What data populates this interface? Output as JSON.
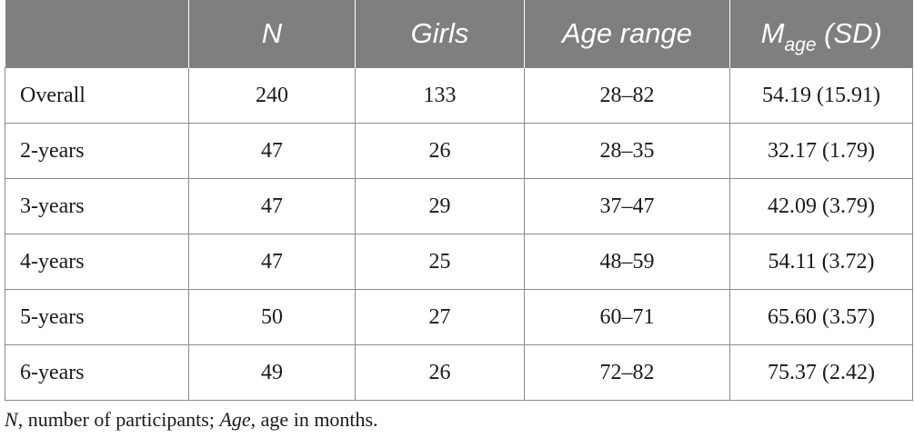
{
  "table": {
    "headers": {
      "group": "",
      "n": "N",
      "girls": "Girls",
      "age_range": "Age range",
      "mage_main": "M",
      "mage_sub": "age",
      "mage_sd": "(SD)"
    },
    "rows": [
      {
        "group": "Overall",
        "n": "240",
        "girls": "133",
        "age_range": "28–82",
        "mage": "54.19 (15.91)"
      },
      {
        "group": "2-years",
        "n": "47",
        "girls": "26",
        "age_range": "28–35",
        "mage": "32.17 (1.79)"
      },
      {
        "group": "3-years",
        "n": "47",
        "girls": "29",
        "age_range": "37–47",
        "mage": "42.09 (3.79)"
      },
      {
        "group": "4-years",
        "n": "47",
        "girls": "25",
        "age_range": "48–59",
        "mage": "54.11 (3.72)"
      },
      {
        "group": "5-years",
        "n": "50",
        "girls": "27",
        "age_range": "60–71",
        "mage": "65.60 (3.57)"
      },
      {
        "group": "6-years",
        "n": "49",
        "girls": "26",
        "age_range": "72–82",
        "mage": "75.37 (2.42)"
      }
    ]
  },
  "footnote": {
    "n_term": "N",
    "n_def": ", number of participants; ",
    "age_term": "Age",
    "age_def": ", age in months."
  }
}
